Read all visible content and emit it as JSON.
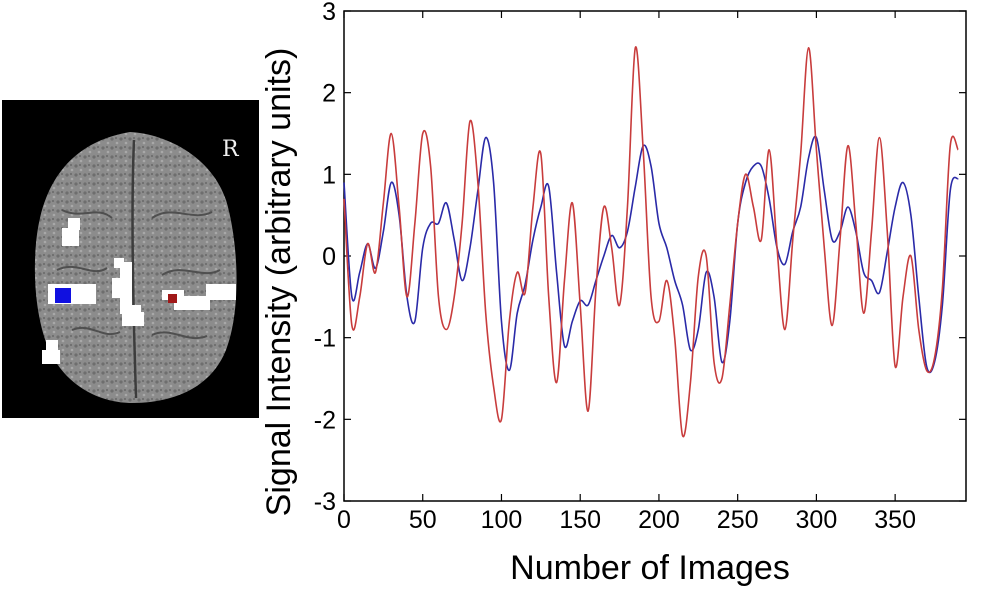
{
  "panel": {
    "orientation_label": "R",
    "roi_colors": {
      "left_roi": "#1010e0",
      "right_roi": "#a01818"
    }
  },
  "chart_data": {
    "type": "line",
    "title": "",
    "xlabel": "Number of Images",
    "ylabel": "Signal Intensity (arbitrary units)",
    "xlim": [
      0,
      395
    ],
    "ylim": [
      -3,
      3
    ],
    "xticks": [
      0,
      50,
      100,
      150,
      200,
      250,
      300,
      350
    ],
    "yticks": [
      3,
      2,
      1,
      0,
      -1,
      -2,
      -3
    ],
    "grid": false,
    "series": [
      {
        "color": "#2a2aa8",
        "x": [
          0,
          5,
          10,
          15,
          20,
          25,
          30,
          35,
          40,
          45,
          50,
          55,
          60,
          65,
          70,
          75,
          80,
          85,
          90,
          95,
          100,
          105,
          110,
          115,
          120,
          125,
          130,
          135,
          140,
          145,
          150,
          155,
          160,
          165,
          170,
          175,
          180,
          185,
          190,
          195,
          200,
          205,
          210,
          215,
          220,
          225,
          230,
          235,
          240,
          245,
          250,
          255,
          260,
          265,
          270,
          275,
          280,
          285,
          290,
          295,
          300,
          305,
          310,
          315,
          320,
          325,
          330,
          335,
          340,
          345,
          350,
          355,
          360,
          365,
          370,
          375,
          380,
          385,
          390
        ],
        "values": [
          0.9,
          -0.5,
          -0.2,
          0.15,
          -0.15,
          0.3,
          0.9,
          0.5,
          -0.5,
          -0.8,
          0.1,
          0.4,
          0.4,
          0.65,
          0.2,
          -0.3,
          0.1,
          0.8,
          1.45,
          0.9,
          -0.8,
          -1.4,
          -0.7,
          -0.35,
          0.2,
          0.6,
          0.85,
          -0.2,
          -1.1,
          -0.8,
          -0.55,
          -0.6,
          -0.3,
          0.0,
          0.25,
          0.1,
          0.3,
          0.85,
          1.35,
          1.1,
          0.4,
          0.1,
          -0.3,
          -0.6,
          -1.15,
          -0.9,
          -0.2,
          -0.5,
          -1.3,
          -0.8,
          0.4,
          0.9,
          1.1,
          1.1,
          0.7,
          0.1,
          -0.1,
          0.3,
          0.6,
          1.2,
          1.45,
          0.8,
          0.2,
          0.3,
          0.6,
          0.3,
          -0.2,
          -0.3,
          -0.45,
          0.05,
          0.6,
          0.9,
          0.5,
          -0.5,
          -1.35,
          -1.3,
          -0.6,
          0.8,
          0.95
        ]
      },
      {
        "color": "#c83c3c",
        "x": [
          0,
          5,
          10,
          15,
          20,
          25,
          30,
          35,
          40,
          45,
          50,
          55,
          60,
          65,
          70,
          75,
          80,
          85,
          90,
          95,
          100,
          105,
          110,
          115,
          120,
          125,
          130,
          135,
          140,
          145,
          150,
          155,
          160,
          165,
          170,
          175,
          180,
          185,
          190,
          195,
          200,
          205,
          210,
          215,
          220,
          225,
          230,
          235,
          240,
          245,
          250,
          255,
          260,
          265,
          270,
          275,
          280,
          285,
          290,
          295,
          300,
          305,
          310,
          315,
          320,
          325,
          330,
          335,
          340,
          345,
          350,
          355,
          360,
          365,
          370,
          375,
          380,
          385,
          390
        ],
        "values": [
          0.7,
          -0.85,
          -0.5,
          0.15,
          -0.2,
          0.65,
          1.5,
          0.6,
          -0.5,
          0.4,
          1.5,
          1.1,
          -0.5,
          -0.9,
          -0.5,
          0.4,
          1.65,
          0.9,
          -0.7,
          -1.6,
          -2.0,
          -0.8,
          -0.2,
          -0.45,
          0.6,
          1.25,
          -0.5,
          -1.55,
          -0.3,
          0.65,
          -0.6,
          -1.9,
          -0.4,
          0.6,
          0.1,
          -0.6,
          0.6,
          2.55,
          1.3,
          -0.5,
          -0.8,
          -0.3,
          -1.0,
          -2.2,
          -1.55,
          -0.25,
          0.0,
          -1.3,
          -1.5,
          -0.6,
          0.4,
          1.0,
          0.6,
          0.2,
          1.3,
          0.1,
          -0.9,
          0.2,
          1.25,
          2.55,
          1.3,
          0.1,
          -0.85,
          0.2,
          1.35,
          0.4,
          -0.7,
          0.3,
          1.45,
          0.3,
          -1.35,
          -0.5,
          0.0,
          -0.9,
          -1.4,
          -1.25,
          -0.4,
          1.35,
          1.3
        ]
      }
    ]
  }
}
